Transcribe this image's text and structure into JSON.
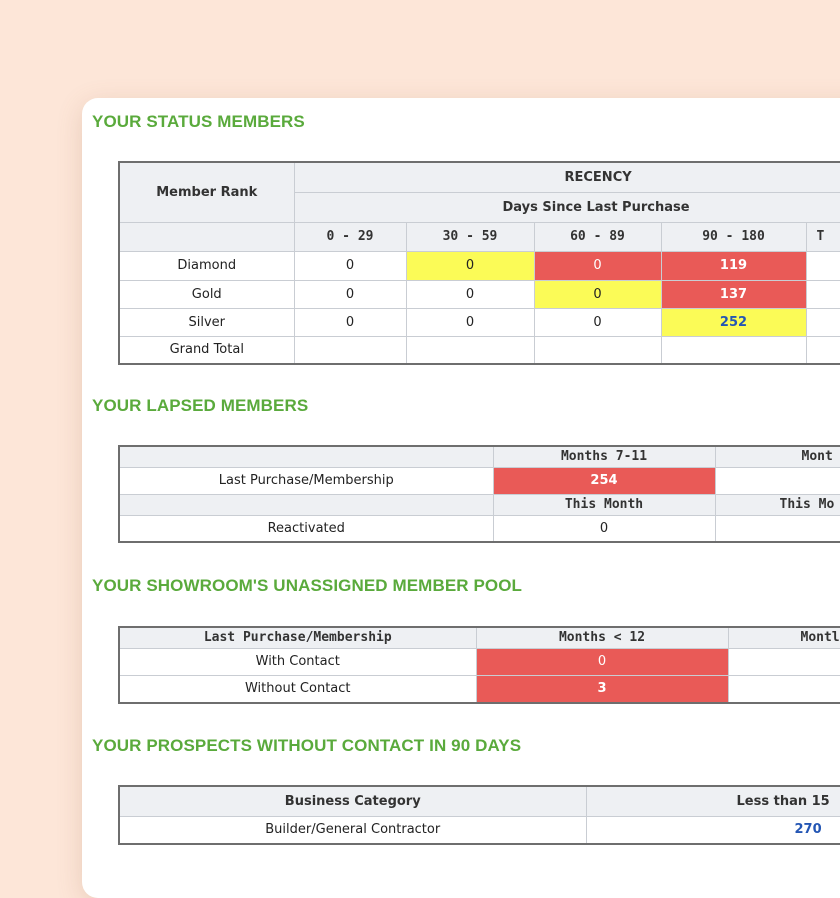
{
  "colors": {
    "page_background": "#fde6d8",
    "section_title": "#5aaa3c",
    "cell_red": "#e95a57",
    "cell_yellow": "#fbfb57",
    "link_blue": "#2456b4"
  },
  "status": {
    "title": "YOUR STATUS MEMBERS",
    "rank_header": "Member Rank",
    "recency_header": "RECENCY",
    "days_header": "Days Since Last Purchase",
    "ranges": [
      "0 - 29",
      "30 - 59",
      "60 - 89",
      "90 - 180",
      "T"
    ],
    "rows": [
      {
        "rank": "Diamond",
        "values": [
          "0",
          "0",
          "0",
          "119",
          ""
        ]
      },
      {
        "rank": "Gold",
        "values": [
          "0",
          "0",
          "0",
          "137",
          ""
        ]
      },
      {
        "rank": "Silver",
        "values": [
          "0",
          "0",
          "0",
          "252",
          ""
        ]
      },
      {
        "rank": "Grand Total",
        "values": [
          "",
          "",
          "",
          "",
          ""
        ]
      }
    ]
  },
  "lapsed": {
    "title": "YOUR LAPSED MEMBERS",
    "col1_header": "Months 7-11",
    "col2_header": "Mont",
    "row1_label": "Last Purchase/Membership",
    "row1_values": [
      "254",
      ""
    ],
    "col1_header_b": "This Month",
    "col2_header_b": "This Mo",
    "row2_label": "Reactivated",
    "row2_values": [
      "0",
      ""
    ]
  },
  "pool": {
    "title": "YOUR SHOWROOM'S UNASSIGNED MEMBER POOL",
    "header_label": "Last Purchase/Membership",
    "col1_header": "Months < 12",
    "col2_header": "Montl",
    "rows": [
      {
        "label": "With Contact",
        "values": [
          "0",
          ""
        ]
      },
      {
        "label": "Without Contact",
        "values": [
          "3",
          ""
        ]
      }
    ]
  },
  "prospects": {
    "title": "YOUR PROSPECTS WITHOUT CONTACT IN 90 DAYS",
    "category_header": "Business Category",
    "col1_header": "Less than 15",
    "rows": [
      {
        "category": "Builder/General Contractor",
        "value": "270"
      }
    ]
  }
}
